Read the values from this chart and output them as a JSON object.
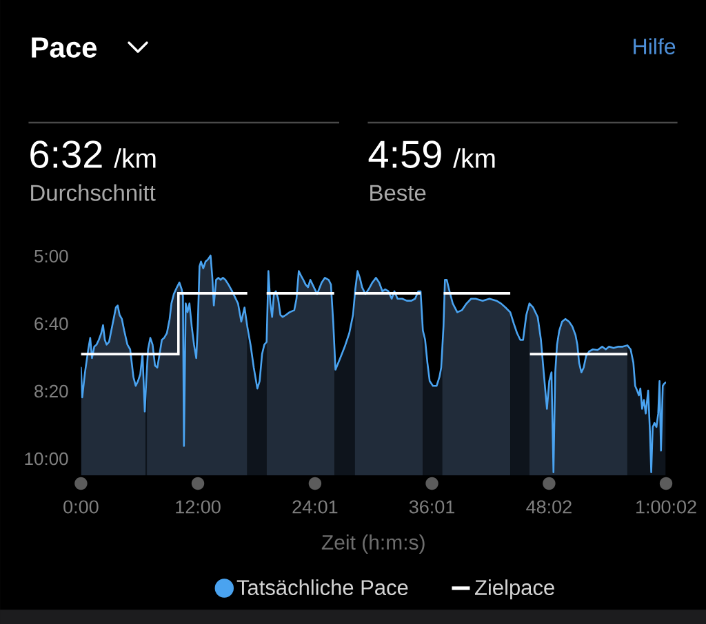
{
  "chart_data": {
    "type": "line",
    "title": "Pace",
    "xlabel": "Zeit (h:m:s)",
    "annotations": [
      "Hilfe",
      "6:32",
      "/km",
      "Durchschnitt",
      "4:59",
      "/km",
      "Beste"
    ],
    "xlim": [
      0,
      3602
    ],
    "xticks": [
      {
        "value": 0,
        "label": "0:00"
      },
      {
        "value": 720,
        "label": "12:00"
      },
      {
        "value": 1441,
        "label": "24:01"
      },
      {
        "value": 2161,
        "label": "36:01"
      },
      {
        "value": 2882,
        "label": "48:02"
      },
      {
        "value": 3602,
        "label": "1:00:02"
      }
    ],
    "ylim": [
      625,
      290
    ],
    "yticks": [
      {
        "value": 300,
        "label": "5:00"
      },
      {
        "value": 400,
        "label": "6:40"
      },
      {
        "value": 500,
        "label": "8:20"
      },
      {
        "value": 600,
        "label": "10:00"
      }
    ],
    "legend": "bottom",
    "series": [
      {
        "name": "Tatsächliche Pace",
        "color": "#4aa3f0",
        "x": [
          0,
          8,
          25,
          45,
          57,
          68,
          82,
          96,
          110,
          125,
          136,
          147,
          158,
          173,
          187,
          201,
          215,
          226,
          238,
          252,
          266,
          286,
          303,
          323,
          337,
          351,
          365,
          379,
          393,
          402,
          413,
          427,
          441,
          456,
          470,
          484,
          498,
          512,
          529,
          546,
          557,
          572,
          591,
          606,
          620,
          628,
          634,
          645,
          656,
          668,
          682,
          696,
          710,
          719,
          730,
          739,
          753,
          767,
          781,
          798,
          809,
          818,
          832,
          846,
          860,
          874,
          889,
          908,
          931,
          945,
          967,
          987,
          1007,
          1024,
          1044,
          1064,
          1086,
          1100,
          1115,
          1129,
          1143,
          1154,
          1166,
          1177,
          1188,
          1200,
          1214,
          1228,
          1242,
          1262,
          1284,
          1313,
          1327,
          1341,
          1355,
          1369,
          1383,
          1398,
          1412,
          1426,
          1454,
          1482,
          1502,
          1525,
          1539,
          1553,
          1567,
          1596,
          1624,
          1652,
          1675,
          1689,
          1703,
          1717,
          1731,
          1751,
          1771,
          1794,
          1816,
          1836,
          1856,
          1873,
          1893,
          1913,
          1930,
          1949,
          1978,
          2006,
          2034,
          2057,
          2077,
          2091,
          2105,
          2119,
          2133,
          2147,
          2167,
          2190,
          2207,
          2218,
          2232,
          2241,
          2252,
          2266,
          2289,
          2317,
          2345,
          2374,
          2402,
          2430,
          2473,
          2515,
          2558,
          2586,
          2614,
          2643,
          2665,
          2685,
          2705,
          2722,
          2742,
          2761,
          2784,
          2812,
          2832,
          2849,
          2869,
          2883,
          2897,
          2909,
          2920,
          2931,
          2945,
          2962,
          2982,
          3005,
          3025,
          3045,
          3056,
          3067,
          3081,
          3095,
          3110,
          3129,
          3152,
          3180,
          3209,
          3231,
          3251,
          3279,
          3308,
          3336,
          3364,
          3384,
          3401,
          3412,
          3424,
          3435,
          3444,
          3455,
          3466,
          3477,
          3492,
          3503,
          3511,
          3520,
          3531,
          3543,
          3554,
          3562,
          3571,
          3582,
          3590,
          3600
        ],
        "values": [
          465,
          509,
          472,
          438,
          421,
          451,
          434,
          431,
          424,
          414,
          402,
          424,
          431,
          427,
          410,
          393,
          376,
          373,
          387,
          393,
          410,
          431,
          438,
          479,
          492,
          485,
          475,
          445,
          530,
          485,
          438,
          421,
          431,
          462,
          465,
          445,
          424,
          421,
          414,
          393,
          370,
          356,
          346,
          339,
          349,
          359,
          581,
          370,
          383,
          370,
          404,
          431,
          451,
          404,
          315,
          308,
          318,
          308,
          305,
          299,
          332,
          373,
          335,
          332,
          335,
          332,
          335,
          342,
          352,
          359,
          370,
          397,
          376,
          404,
          431,
          465,
          496,
          485,
          445,
          431,
          427,
          322,
          370,
          390,
          356,
          352,
          363,
          387,
          390,
          387,
          383,
          380,
          363,
          322,
          329,
          335,
          342,
          346,
          335,
          342,
          356,
          339,
          332,
          335,
          342,
          397,
          468,
          451,
          434,
          414,
          387,
          349,
          322,
          332,
          346,
          356,
          349,
          339,
          332,
          339,
          352,
          349,
          352,
          363,
          352,
          363,
          363,
          366,
          366,
          363,
          352,
          352,
          410,
          424,
          458,
          485,
          492,
          492,
          479,
          465,
          404,
          335,
          335,
          349,
          370,
          383,
          380,
          370,
          363,
          363,
          366,
          363,
          366,
          370,
          376,
          383,
          400,
          414,
          424,
          424,
          387,
          370,
          376,
          390,
          424,
          472,
          526,
          485,
          472,
          620,
          472,
          431,
          410,
          397,
          393,
          397,
          404,
          417,
          431,
          458,
          472,
          465,
          448,
          441,
          438,
          439,
          434,
          438,
          434,
          436,
          434,
          434,
          432,
          438,
          458,
          492,
          499,
          506,
          496,
          526,
          513,
          533,
          499,
          560,
          620,
          553,
          547,
          553,
          533,
          485,
          588,
          492,
          489,
          487
        ]
      },
      {
        "name": "Zielpace",
        "type": "step",
        "color": "#ffffff",
        "x": [
          0,
          600,
          1024,
          1084,
          1143,
          1559,
          1620,
          1686,
          2091,
          2160,
          2233,
          2643,
          2700,
          2764,
          3364
        ],
        "values": [
          445,
          355,
          355,
          null,
          355,
          355,
          null,
          355,
          355,
          null,
          355,
          355,
          null,
          445,
          445
        ]
      }
    ],
    "bands": [
      {
        "axis": "x",
        "from": 0,
        "to": 398,
        "color": "#212c3a"
      },
      {
        "axis": "x",
        "from": 398,
        "to": 406,
        "color": "#0e141c"
      },
      {
        "axis": "x",
        "from": 406,
        "to": 1024,
        "color": "#212c3a"
      },
      {
        "axis": "x",
        "from": 1024,
        "to": 1143,
        "color": "#0e141c"
      },
      {
        "axis": "x",
        "from": 1143,
        "to": 1562,
        "color": "#212c3a"
      },
      {
        "axis": "x",
        "from": 1562,
        "to": 1686,
        "color": "#0e141c"
      },
      {
        "axis": "x",
        "from": 1686,
        "to": 2105,
        "color": "#212c3a"
      },
      {
        "axis": "x",
        "from": 2105,
        "to": 2224,
        "color": "#0e141c"
      },
      {
        "axis": "x",
        "from": 2224,
        "to": 2643,
        "color": "#212c3a"
      },
      {
        "axis": "x",
        "from": 2643,
        "to": 2761,
        "color": "#0e141c"
      },
      {
        "axis": "x",
        "from": 2761,
        "to": 3364,
        "color": "#212c3a"
      },
      {
        "axis": "x",
        "from": 3364,
        "to": 3600,
        "color": "#0e141c"
      }
    ]
  }
}
